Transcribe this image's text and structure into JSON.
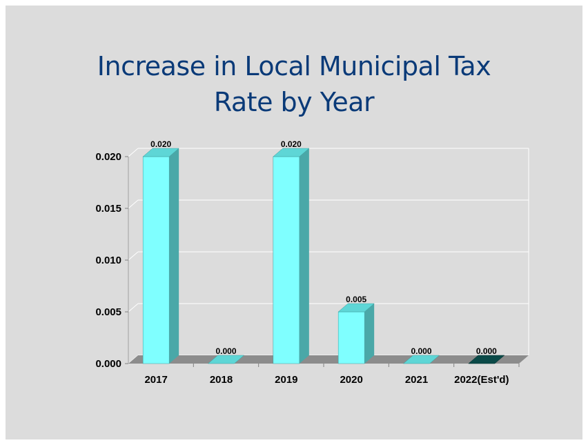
{
  "chart_data": {
    "type": "bar",
    "title": "Increase in Local Municipal Tax Rate by Year",
    "title_lines": [
      "Increase in Local Municipal Tax",
      "Rate by Year"
    ],
    "categories": [
      "2017",
      "2018",
      "2019",
      "2020",
      "2021",
      "2022(Est'd)"
    ],
    "values": [
      0.02,
      0.0,
      0.02,
      0.005,
      0.0,
      0.0
    ],
    "data_labels": [
      "0.020",
      "0.000",
      "0.020",
      "0.005",
      "0.000",
      "0.000"
    ],
    "y_ticks": [
      0.0,
      0.005,
      0.01,
      0.015,
      0.02
    ],
    "y_tick_labels": [
      "0.000",
      "0.005",
      "0.010",
      "0.015",
      "0.020"
    ],
    "ylim": [
      0,
      0.02
    ],
    "xlabel": "",
    "ylabel": "",
    "grid": true,
    "legend": "none",
    "style": "3d-column",
    "colors": {
      "background": "#dcdcdc",
      "title": "#0a3a78",
      "bar_front": "#7fffff",
      "bar_side": "#4aa8a8",
      "bar_top": "#5ed6d6",
      "last_zero_bar": "#0b4a48",
      "floor": "#8c8c8c",
      "grid": "#ffffff"
    }
  }
}
